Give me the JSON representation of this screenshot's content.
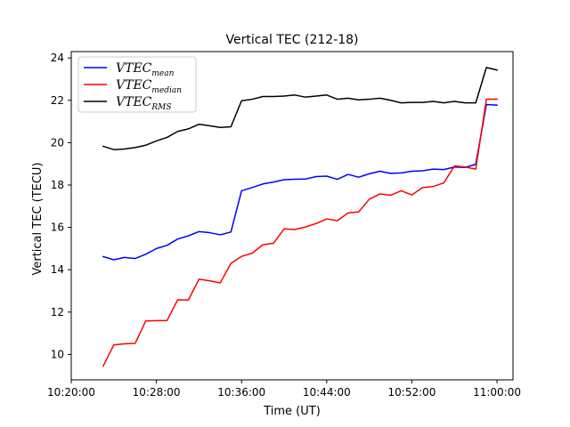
{
  "chart_data": {
    "type": "line",
    "title": "Vertical TEC (212-18)",
    "xlabel": "Time (UT)",
    "ylabel": "Vertical TEC (TECU)",
    "xlim": [
      "10:20:00",
      "11:01:30"
    ],
    "ylim": [
      8.8,
      24.3
    ],
    "x_ticks": [
      "10:20:00",
      "10:28:00",
      "10:36:00",
      "10:44:00",
      "10:52:00",
      "11:00:00"
    ],
    "y_ticks": [
      10,
      12,
      14,
      16,
      18,
      20,
      22,
      24
    ],
    "grid": false,
    "legend_position": "top-left",
    "x": [
      "10:23:00",
      "10:24:00",
      "10:25:00",
      "10:26:00",
      "10:27:00",
      "10:28:00",
      "10:29:00",
      "10:30:00",
      "10:31:00",
      "10:32:00",
      "10:33:00",
      "10:34:00",
      "10:35:00",
      "10:36:00",
      "10:37:00",
      "10:38:00",
      "10:39:00",
      "10:40:00",
      "10:41:00",
      "10:42:00",
      "10:43:00",
      "10:44:00",
      "10:45:00",
      "10:46:00",
      "10:47:00",
      "10:48:00",
      "10:49:00",
      "10:50:00",
      "10:51:00",
      "10:52:00",
      "10:53:00",
      "10:54:00",
      "10:55:00",
      "10:56:00",
      "10:57:00",
      "10:58:00",
      "10:59:00",
      "11:00:00"
    ],
    "series": [
      {
        "name": "VTEC_mean",
        "label_base": "VTEC",
        "label_sub": "mean",
        "color": "#0000ff",
        "values": [
          14.62,
          14.47,
          14.58,
          14.53,
          14.73,
          15.0,
          15.15,
          15.45,
          15.6,
          15.8,
          15.75,
          15.65,
          15.78,
          17.73,
          17.88,
          18.05,
          18.14,
          18.25,
          18.27,
          18.28,
          18.4,
          18.42,
          18.27,
          18.5,
          18.37,
          18.53,
          18.65,
          18.55,
          18.57,
          18.65,
          18.67,
          18.75,
          18.73,
          18.85,
          18.83,
          18.98,
          21.8,
          21.77
        ]
      },
      {
        "name": "VTEC_median",
        "label_base": "VTEC",
        "label_sub": "median",
        "color": "#ff0000",
        "values": [
          9.45,
          10.45,
          10.5,
          10.52,
          11.58,
          11.6,
          11.6,
          12.58,
          12.57,
          13.55,
          13.48,
          13.38,
          14.3,
          14.63,
          14.78,
          15.18,
          15.25,
          15.93,
          15.9,
          16.02,
          16.18,
          16.4,
          16.32,
          16.68,
          16.73,
          17.33,
          17.58,
          17.52,
          17.73,
          17.53,
          17.88,
          17.93,
          18.1,
          18.9,
          18.85,
          18.75,
          22.05,
          22.05
        ]
      },
      {
        "name": "VTEC_RMS",
        "label_base": "VTEC",
        "label_sub": "RMS",
        "color": "#000000",
        "values": [
          19.83,
          19.67,
          19.7,
          19.77,
          19.88,
          20.08,
          20.25,
          20.53,
          20.65,
          20.87,
          20.8,
          20.72,
          20.75,
          21.98,
          22.05,
          22.18,
          22.18,
          22.2,
          22.25,
          22.15,
          22.2,
          22.25,
          22.05,
          22.1,
          22.02,
          22.05,
          22.1,
          22.0,
          21.88,
          21.9,
          21.9,
          21.95,
          21.88,
          21.95,
          21.88,
          21.88,
          23.55,
          23.43
        ]
      }
    ]
  }
}
